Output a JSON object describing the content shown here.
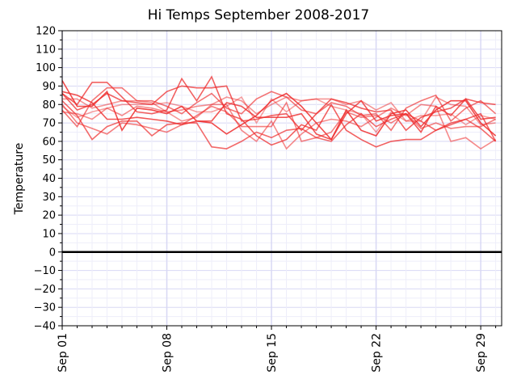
{
  "chart_data": {
    "type": "line",
    "title": "Hi Temps September 2008-2017",
    "xlabel": "",
    "ylabel": "Temperature",
    "ylim": [
      -40,
      120
    ],
    "y_ticks": [
      120,
      110,
      100,
      90,
      80,
      70,
      60,
      50,
      40,
      30,
      20,
      10,
      0,
      -10,
      -20,
      -30,
      -40
    ],
    "x": [
      "Sep 01",
      "Sep 02",
      "Sep 03",
      "Sep 04",
      "Sep 05",
      "Sep 06",
      "Sep 07",
      "Sep 08",
      "Sep 09",
      "Sep 10",
      "Sep 11",
      "Sep 12",
      "Sep 13",
      "Sep 14",
      "Sep 15",
      "Sep 16",
      "Sep 17",
      "Sep 18",
      "Sep 19",
      "Sep 20",
      "Sep 21",
      "Sep 22",
      "Sep 23",
      "Sep 24",
      "Sep 25",
      "Sep 26",
      "Sep 27",
      "Sep 28",
      "Sep 29",
      "Sep 30"
    ],
    "x_ticks": [
      "Sep 01",
      "Sep 08",
      "Sep 15",
      "Sep 22",
      "Sep 29"
    ],
    "reference_line": 0,
    "grid": true,
    "legend": "none",
    "colors": {
      "series": "#ee2c2c",
      "reference": "#000000",
      "grid": "#d8d8f4",
      "minor_grid": "#eeeefa"
    },
    "series": [
      {
        "opacity": 0.85,
        "values": [
          93,
          79,
          79,
          87,
          66,
          78,
          77,
          75,
          79,
          71,
          70,
          64,
          69,
          74,
          82,
          86,
          79,
          70,
          61,
          77,
          66,
          63,
          75,
          77,
          68,
          77,
          82,
          82,
          70,
          63
        ]
      },
      {
        "opacity": 0.8,
        "values": [
          87,
          85,
          81,
          72,
          72,
          73,
          72,
          71,
          69,
          71,
          71,
          81,
          79,
          73,
          73,
          73,
          75,
          64,
          61,
          75,
          82,
          71,
          74,
          75,
          65,
          79,
          74,
          83,
          72,
          73
        ]
      },
      {
        "opacity": 0.75,
        "values": [
          86,
          77,
          80,
          86,
          82,
          81,
          80,
          87,
          90,
          89,
          89,
          90,
          71,
          72,
          74,
          75,
          66,
          75,
          83,
          81,
          78,
          76,
          77,
          66,
          73,
          76,
          78,
          83,
          81,
          80
        ]
      },
      {
        "opacity": 0.7,
        "values": [
          82,
          74,
          61,
          68,
          71,
          71,
          63,
          69,
          70,
          70,
          57,
          56,
          60,
          65,
          62,
          66,
          67,
          62,
          60,
          69,
          75,
          68,
          72,
          75,
          71,
          66,
          69,
          72,
          67,
          60
        ]
      },
      {
        "opacity": 0.6,
        "values": [
          80,
          70,
          67,
          64,
          70,
          69,
          67,
          65,
          69,
          74,
          79,
          76,
          68,
          68,
          68,
          81,
          60,
          62,
          65,
          76,
          73,
          74,
          70,
          75,
          67,
          70,
          67,
          68,
          68,
          72
        ]
      },
      {
        "opacity": 0.75,
        "values": [
          86,
          80,
          92,
          92,
          84,
          76,
          75,
          77,
          94,
          82,
          95,
          75,
          72,
          63,
          58,
          61,
          69,
          66,
          80,
          66,
          61,
          57,
          60,
          61,
          61,
          66,
          70,
          72,
          75,
          60
        ]
      },
      {
        "opacity": 0.55,
        "values": [
          76,
          75,
          72,
          78,
          74,
          79,
          78,
          76,
          77,
          79,
          80,
          80,
          66,
          60,
          71,
          56,
          64,
          70,
          72,
          71,
          68,
          73,
          78,
          74,
          80,
          79,
          60,
          62,
          56,
          61
        ]
      },
      {
        "opacity": 0.5,
        "values": [
          83,
          83,
          78,
          80,
          82,
          82,
          81,
          76,
          71,
          73,
          80,
          84,
          82,
          75,
          80,
          84,
          82,
          83,
          83,
          80,
          82,
          77,
          81,
          71,
          71,
          84,
          80,
          79,
          69,
          70
        ]
      },
      {
        "opacity": 0.45,
        "values": [
          79,
          73,
          76,
          78,
          80,
          80,
          80,
          81,
          79,
          76,
          76,
          79,
          84,
          70,
          83,
          76,
          82,
          83,
          79,
          77,
          75,
          65,
          76,
          71,
          74,
          74,
          75,
          69,
          74,
          72
        ]
      },
      {
        "opacity": 0.65,
        "values": [
          77,
          68,
          82,
          89,
          89,
          82,
          82,
          79,
          75,
          81,
          86,
          78,
          75,
          83,
          87,
          84,
          77,
          75,
          81,
          79,
          74,
          75,
          66,
          78,
          82,
          85,
          71,
          78,
          82,
          75
        ]
      }
    ]
  }
}
